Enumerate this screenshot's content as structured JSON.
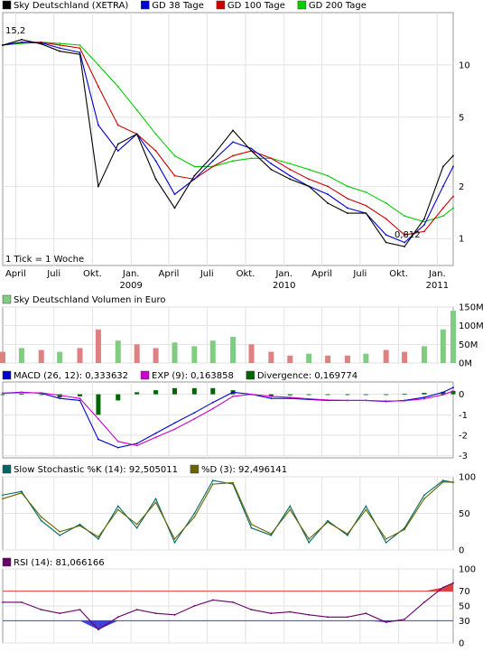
{
  "chart_data": [
    {
      "id": "price",
      "type": "line",
      "title": "Sky Deutschland (XETRA)",
      "scale": "log",
      "ylim": [
        0.7,
        20
      ],
      "yticks": [
        1,
        2,
        5,
        10
      ],
      "x": [
        "2008-03-01",
        "2008-04-15",
        "2008-06-01",
        "2008-07-15",
        "2008-09-01",
        "2008-10-15",
        "2008-12-01",
        "2009-01-15",
        "2009-03-01",
        "2009-04-15",
        "2009-06-01",
        "2009-07-15",
        "2009-09-01",
        "2009-10-15",
        "2009-12-01",
        "2010-01-15",
        "2010-03-01",
        "2010-04-15",
        "2010-06-01",
        "2010-07-15",
        "2010-09-01",
        "2010-10-15",
        "2010-12-01",
        "2011-01-15",
        "2011-02-08"
      ],
      "series": [
        {
          "name": "Sky Deutschland (XETRA)",
          "color": "#000000",
          "values": [
            13.0,
            14.0,
            13.2,
            12.0,
            11.5,
            2.0,
            3.5,
            4.0,
            2.2,
            1.5,
            2.3,
            3.0,
            4.2,
            3.2,
            2.5,
            2.2,
            2.0,
            1.6,
            1.4,
            1.4,
            0.95,
            0.9,
            1.3,
            2.6,
            3.0
          ]
        },
        {
          "name": "GD 38 Tage",
          "color": "#0000cc",
          "values": [
            13.0,
            13.5,
            13.4,
            12.5,
            11.8,
            4.5,
            3.2,
            4.0,
            2.8,
            1.8,
            2.2,
            2.8,
            3.6,
            3.3,
            2.7,
            2.3,
            2.0,
            1.8,
            1.5,
            1.4,
            1.05,
            0.95,
            1.2,
            2.0,
            2.6
          ]
        },
        {
          "name": "GD 100 Tage",
          "color": "#cc0000",
          "values": [
            13.0,
            13.5,
            13.5,
            13.0,
            12.5,
            7.5,
            4.5,
            4.0,
            3.2,
            2.3,
            2.2,
            2.6,
            3.0,
            3.2,
            2.9,
            2.5,
            2.2,
            2.0,
            1.7,
            1.55,
            1.3,
            1.05,
            1.1,
            1.5,
            1.75
          ]
        },
        {
          "name": "GD 200 Tage",
          "color": "#00cc00",
          "values": [
            13.0,
            13.3,
            13.5,
            13.3,
            13.0,
            10.0,
            7.5,
            5.5,
            4.0,
            3.0,
            2.6,
            2.6,
            2.8,
            2.9,
            2.9,
            2.7,
            2.5,
            2.3,
            2.0,
            1.85,
            1.6,
            1.35,
            1.25,
            1.35,
            1.5
          ]
        }
      ],
      "legend": [
        {
          "name": "Sky Deutschland (XETRA)",
          "color": "#000000"
        },
        {
          "name": "GD 38 Tage",
          "color": "#0000cc"
        },
        {
          "name": "GD 100 Tage",
          "color": "#cc0000"
        },
        {
          "name": "GD 200 Tage",
          "color": "#00cc00"
        }
      ],
      "annotations": {
        "high_label": "15,2",
        "low_label": "0,812",
        "note": "1 Tick = 1 Woche"
      },
      "xticks_months": [
        {
          "label": "April",
          "date": "2008-04-01"
        },
        {
          "label": "Juli",
          "date": "2008-07-01"
        },
        {
          "label": "Okt.",
          "date": "2008-10-01"
        },
        {
          "label": "Jan.",
          "date": "2009-01-01"
        },
        {
          "label": "April",
          "date": "2009-04-01"
        },
        {
          "label": "Juli",
          "date": "2009-07-01"
        },
        {
          "label": "Okt.",
          "date": "2009-10-01"
        },
        {
          "label": "Jan.",
          "date": "2010-01-01"
        },
        {
          "label": "April",
          "date": "2010-04-01"
        },
        {
          "label": "Juli",
          "date": "2010-07-01"
        },
        {
          "label": "Okt.",
          "date": "2010-10-01"
        },
        {
          "label": "Jan.",
          "date": "2011-01-01"
        }
      ],
      "xticks_years": [
        {
          "label": "2009",
          "date": "2009-01-01"
        },
        {
          "label": "2010",
          "date": "2010-01-01"
        },
        {
          "label": "2011",
          "date": "2011-01-01"
        }
      ],
      "grid": true
    },
    {
      "id": "volume",
      "type": "bar",
      "title": "Sky Deutschland Volumen in Euro",
      "ylim": [
        0,
        150
      ],
      "yticks": [
        {
          "value": 0,
          "label": "0M"
        },
        {
          "value": 50,
          "label": "50M"
        },
        {
          "value": 100,
          "label": "100M"
        },
        {
          "value": 150,
          "label": "150M"
        }
      ],
      "x": [
        "2008-03-01",
        "2008-04-15",
        "2008-06-01",
        "2008-07-15",
        "2008-09-01",
        "2008-10-15",
        "2008-12-01",
        "2009-01-15",
        "2009-03-01",
        "2009-04-15",
        "2009-06-01",
        "2009-07-15",
        "2009-09-01",
        "2009-10-15",
        "2009-12-01",
        "2010-01-15",
        "2010-03-01",
        "2010-04-15",
        "2010-06-01",
        "2010-07-15",
        "2010-09-01",
        "2010-10-15",
        "2010-12-01",
        "2011-01-15",
        "2011-02-08"
      ],
      "values": [
        30,
        40,
        35,
        30,
        40,
        90,
        60,
        50,
        40,
        55,
        45,
        60,
        70,
        50,
        30,
        20,
        25,
        20,
        20,
        25,
        35,
        30,
        45,
        90,
        140
      ],
      "colors": [
        "#e08080",
        "#80cc80",
        "#e08080",
        "#80cc80",
        "#e08080",
        "#e08080",
        "#80cc80",
        "#e08080",
        "#e08080",
        "#80cc80",
        "#80cc80",
        "#80cc80",
        "#80cc80",
        "#e08080",
        "#e08080",
        "#e08080",
        "#80cc80",
        "#e08080",
        "#e08080",
        "#80cc80",
        "#e08080",
        "#e08080",
        "#80cc80",
        "#80cc80",
        "#80cc80"
      ],
      "legend": [
        {
          "name": "Sky Deutschland Volumen in Euro",
          "color": "#80cc80"
        }
      ],
      "grid": true
    },
    {
      "id": "macd",
      "type": "line",
      "ylim": [
        -3.1,
        0.6
      ],
      "yticks": [
        0,
        -1,
        -2,
        -3
      ],
      "x": [
        "2008-03-01",
        "2008-04-15",
        "2008-06-01",
        "2008-07-15",
        "2008-09-01",
        "2008-10-15",
        "2008-12-01",
        "2009-01-15",
        "2009-03-01",
        "2009-04-15",
        "2009-06-01",
        "2009-07-15",
        "2009-09-01",
        "2009-10-15",
        "2009-12-01",
        "2010-01-15",
        "2010-03-01",
        "2010-04-15",
        "2010-06-01",
        "2010-07-15",
        "2010-09-01",
        "2010-10-15",
        "2010-12-01",
        "2011-01-15",
        "2011-02-08"
      ],
      "series": [
        {
          "name": "MACD (26, 12): 0,333632",
          "color": "#0000cc",
          "values": [
            0.05,
            0.1,
            0.05,
            -0.2,
            -0.3,
            -2.2,
            -2.6,
            -2.4,
            -1.9,
            -1.4,
            -0.9,
            -0.4,
            0.1,
            0.0,
            -0.2,
            -0.2,
            -0.25,
            -0.3,
            -0.3,
            -0.3,
            -0.35,
            -0.3,
            -0.15,
            0.1,
            0.33
          ]
        },
        {
          "name": "EXP (9): 0,163858",
          "color": "#cc00cc",
          "values": [
            0.05,
            0.08,
            0.07,
            -0.05,
            -0.2,
            -1.2,
            -2.3,
            -2.5,
            -2.1,
            -1.7,
            -1.2,
            -0.7,
            -0.1,
            0.0,
            -0.1,
            -0.15,
            -0.22,
            -0.28,
            -0.3,
            -0.3,
            -0.33,
            -0.32,
            -0.22,
            -0.02,
            0.16
          ]
        }
      ],
      "divergence": {
        "name": "Divergence: 0,169774",
        "color": "#006600",
        "values": [
          0.0,
          0.02,
          -0.02,
          -0.15,
          -0.1,
          -1.0,
          -0.3,
          0.1,
          0.2,
          0.3,
          0.3,
          0.3,
          0.2,
          0.0,
          -0.1,
          -0.05,
          -0.03,
          -0.02,
          0.0,
          0.0,
          -0.02,
          0.02,
          0.07,
          0.12,
          0.17
        ]
      },
      "legend": [
        {
          "name": "MACD (26, 12): 0,333632",
          "color": "#0000cc"
        },
        {
          "name": "EXP (9): 0,163858",
          "color": "#cc00cc"
        },
        {
          "name": "Divergence: 0,169774",
          "color": "#006600"
        }
      ],
      "grid": true
    },
    {
      "id": "stochastic",
      "type": "line",
      "ylim": [
        0,
        100
      ],
      "yticks": [
        0,
        50,
        100
      ],
      "x": [
        "2008-03-01",
        "2008-04-15",
        "2008-06-01",
        "2008-07-15",
        "2008-09-01",
        "2008-10-15",
        "2008-12-01",
        "2009-01-15",
        "2009-03-01",
        "2009-04-15",
        "2009-06-01",
        "2009-07-15",
        "2009-09-01",
        "2009-10-15",
        "2009-12-01",
        "2010-01-15",
        "2010-03-01",
        "2010-04-15",
        "2010-06-01",
        "2010-07-15",
        "2010-09-01",
        "2010-10-15",
        "2010-12-01",
        "2011-01-15",
        "2011-02-08"
      ],
      "series": [
        {
          "name": "Slow Stochastic %K (14): 92,505011",
          "color": "#006666",
          "values": [
            75,
            80,
            40,
            20,
            35,
            15,
            60,
            30,
            70,
            10,
            50,
            95,
            90,
            30,
            20,
            60,
            10,
            40,
            20,
            60,
            10,
            30,
            75,
            95,
            92.5
          ]
        },
        {
          "name": "%D (3): 92,496141",
          "color": "#666600",
          "values": [
            70,
            78,
            45,
            25,
            33,
            18,
            55,
            35,
            65,
            15,
            45,
            90,
            92,
            35,
            22,
            55,
            15,
            38,
            22,
            55,
            15,
            28,
            70,
            93,
            92.5
          ]
        }
      ],
      "legend": [
        {
          "name": "Slow Stochastic %K (14): 92,505011",
          "color": "#006666"
        },
        {
          "name": "%D (3): 92,496141",
          "color": "#666600"
        }
      ],
      "grid": true
    },
    {
      "id": "rsi",
      "type": "line",
      "ylim": [
        0,
        100
      ],
      "yticks": [
        0,
        30,
        50,
        70,
        100
      ],
      "hlines": [
        30,
        70
      ],
      "x": [
        "2008-03-01",
        "2008-04-15",
        "2008-06-01",
        "2008-07-15",
        "2008-09-01",
        "2008-10-15",
        "2008-12-01",
        "2009-01-15",
        "2009-03-01",
        "2009-04-15",
        "2009-06-01",
        "2009-07-15",
        "2009-09-01",
        "2009-10-15",
        "2009-12-01",
        "2010-01-15",
        "2010-03-01",
        "2010-04-15",
        "2010-06-01",
        "2010-07-15",
        "2010-09-01",
        "2010-10-15",
        "2010-12-01",
        "2011-01-15",
        "2011-02-08"
      ],
      "series": [
        {
          "name": "RSI (14): 81,066166",
          "color": "#660066",
          "values": [
            55,
            55,
            45,
            40,
            45,
            18,
            35,
            45,
            40,
            38,
            50,
            58,
            55,
            45,
            40,
            42,
            38,
            35,
            35,
            40,
            28,
            32,
            55,
            75,
            81
          ]
        }
      ],
      "overbought_fill": "#dd4040",
      "oversold_fill": "#4040dd",
      "legend": [
        {
          "name": "RSI (14): 81,066166",
          "color": "#660066"
        }
      ],
      "grid": true
    }
  ]
}
